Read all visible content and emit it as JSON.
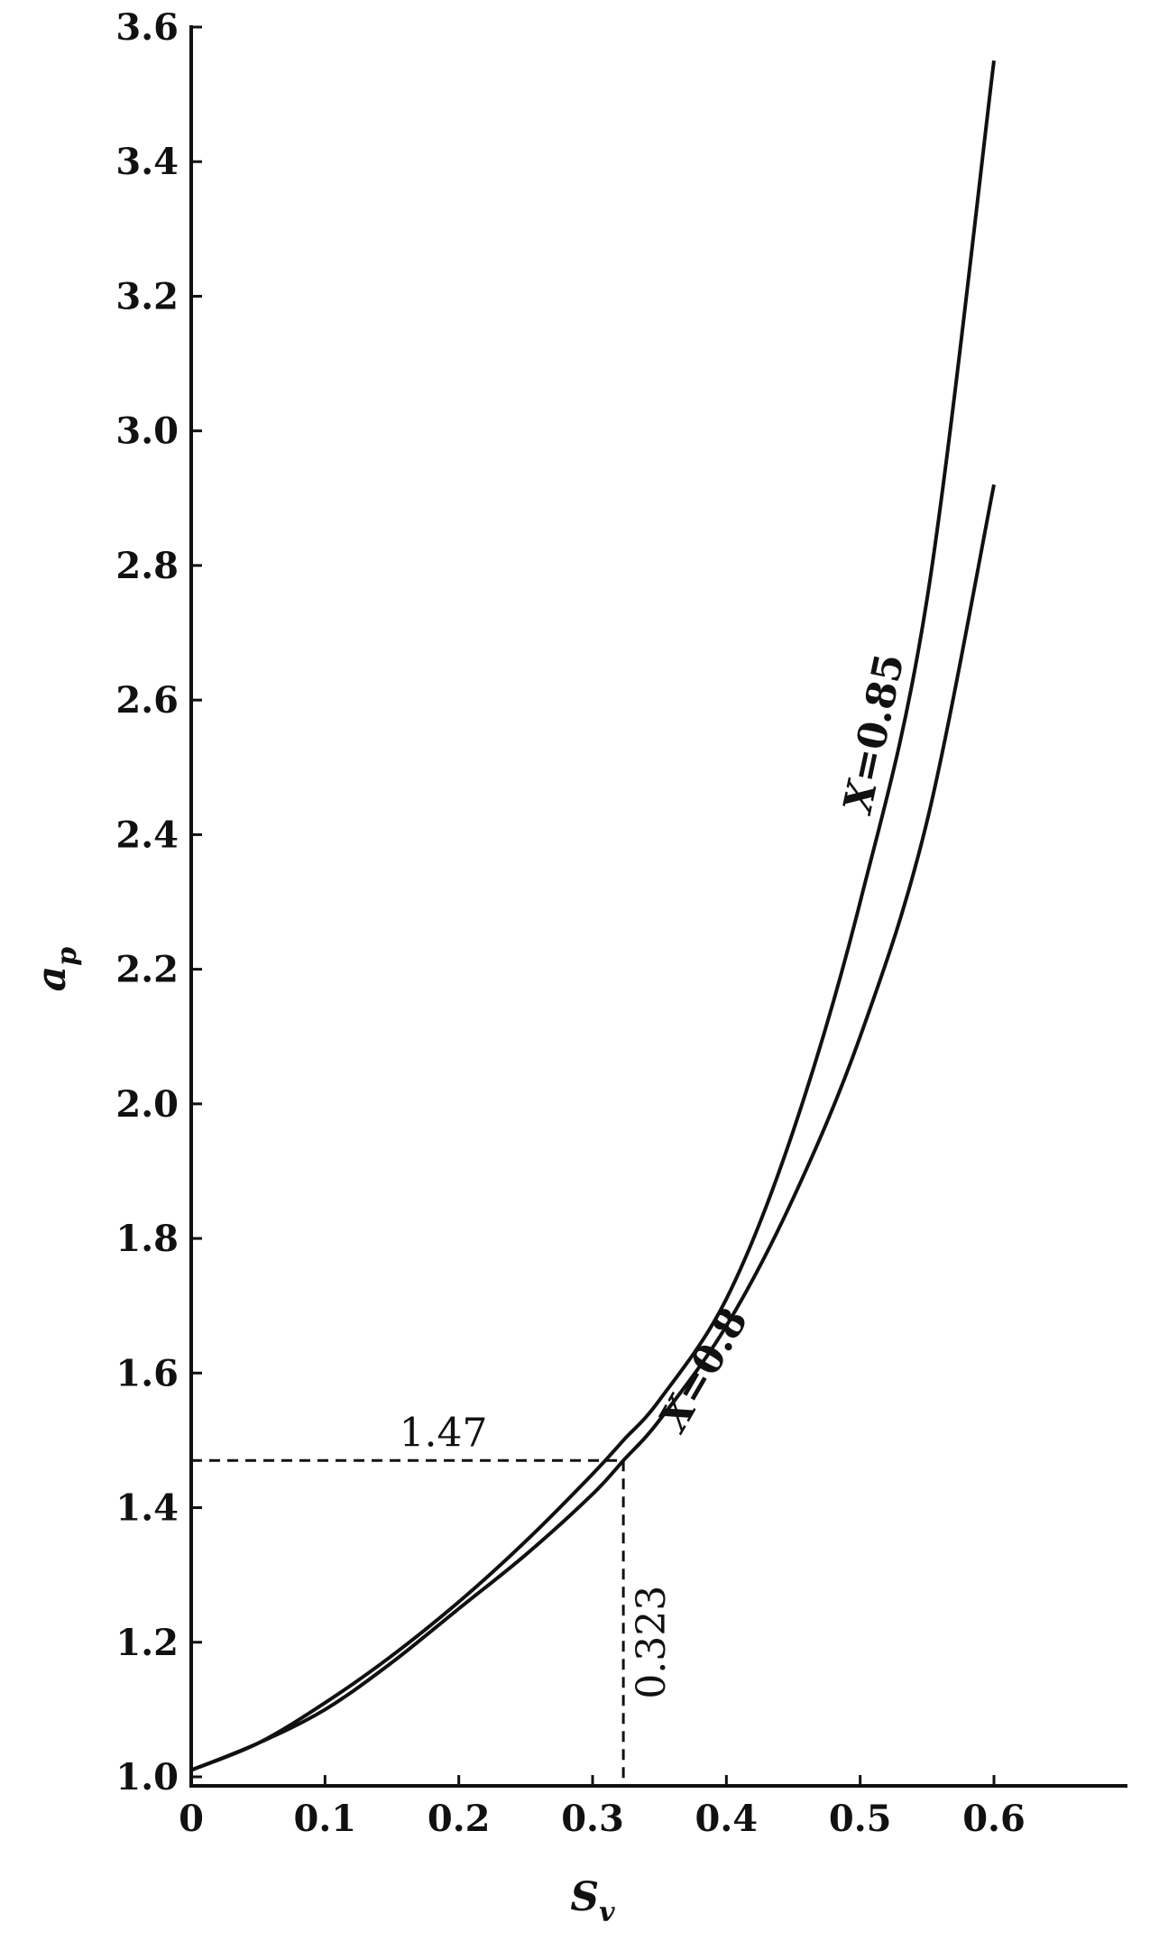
{
  "chart_data": {
    "type": "line",
    "xlabel": "S_v",
    "xlabel_main": "S",
    "xlabel_sub": "v",
    "ylabel": "a_p",
    "ylabel_main": "a",
    "ylabel_sub": "p",
    "xlim": [
      0,
      0.7
    ],
    "ylim": [
      1.0,
      3.6
    ],
    "xticks": [
      0,
      0.1,
      0.2,
      0.3,
      0.4,
      0.5,
      0.6
    ],
    "xtick_labels": [
      "0",
      "0.1",
      "0.2",
      "0.3",
      "0.4",
      "0.5",
      "0.6"
    ],
    "yticks": [
      1.0,
      1.2,
      1.4,
      1.6,
      1.8,
      2.0,
      2.2,
      2.4,
      2.6,
      2.8,
      3.0,
      3.2,
      3.4,
      3.6
    ],
    "ytick_labels": [
      "1.0",
      "1.2",
      "1.4",
      "1.6",
      "1.8",
      "2.0",
      "2.2",
      "2.4",
      "2.6",
      "2.8",
      "3.0",
      "3.2",
      "3.4",
      "3.6"
    ],
    "grid": false,
    "series": [
      {
        "name": "X=0.85",
        "name_var": "X",
        "name_rest": "=0.85",
        "x": [
          0,
          0.05,
          0.1,
          0.15,
          0.2,
          0.25,
          0.3,
          0.323,
          0.35,
          0.4,
          0.45,
          0.5,
          0.55,
          0.6
        ],
        "y": [
          1.01,
          1.05,
          1.11,
          1.18,
          1.26,
          1.35,
          1.45,
          1.5,
          1.56,
          1.71,
          1.96,
          2.3,
          2.75,
          3.55
        ]
      },
      {
        "name": "X=0.8",
        "name_var": "X",
        "name_rest": "=0.8",
        "x": [
          0,
          0.05,
          0.1,
          0.15,
          0.2,
          0.25,
          0.3,
          0.323,
          0.35,
          0.4,
          0.45,
          0.5,
          0.55,
          0.6
        ],
        "y": [
          1.01,
          1.05,
          1.1,
          1.17,
          1.25,
          1.33,
          1.42,
          1.47,
          1.53,
          1.67,
          1.86,
          2.1,
          2.42,
          2.92
        ]
      }
    ],
    "annotations": [
      {
        "text": "1.47",
        "axis": "y",
        "value": 1.47
      },
      {
        "text": "0.323",
        "axis": "x",
        "value": 0.323
      }
    ]
  }
}
